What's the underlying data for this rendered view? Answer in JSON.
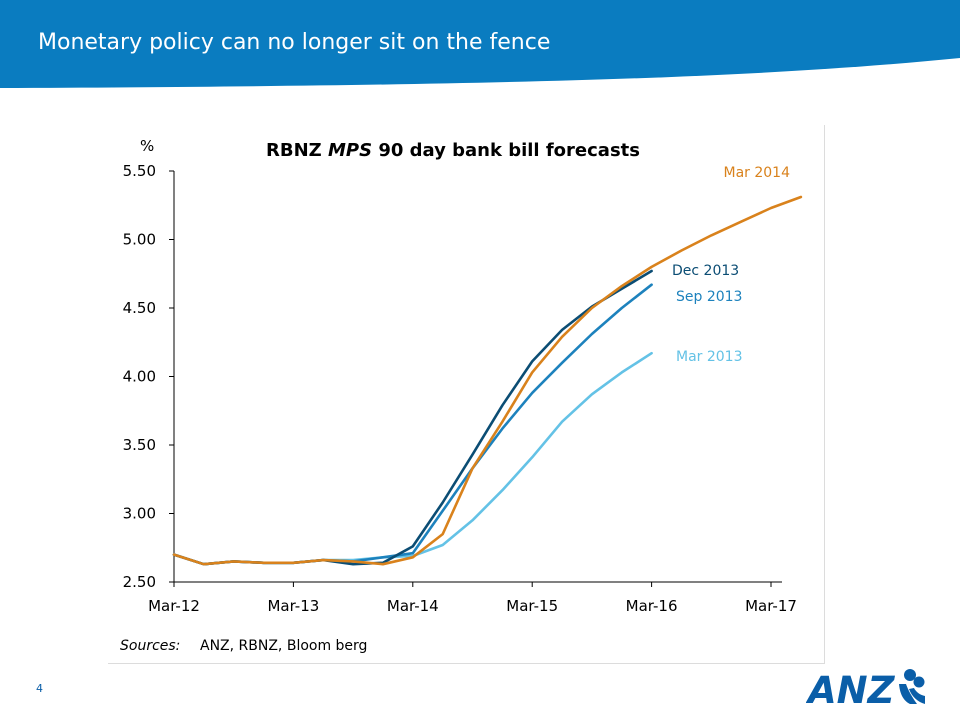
{
  "slide": {
    "title": "Monetary policy can no longer sit on the fence",
    "page_number": "4",
    "sources_label": "Sources:",
    "sources_text": "ANZ, RBNZ, Bloom berg",
    "logo_text": "ANZ"
  },
  "colors": {
    "banner": "#0a7cc0",
    "page_number": "#0a5ea8",
    "mar2014": "#d9821c",
    "dec2013": "#0b4d74",
    "sep2013": "#1d82bd",
    "mar2013": "#64c2e6",
    "logo": "#0a5ea8"
  },
  "chart_data": {
    "type": "line",
    "title_parts": [
      "RBNZ ",
      "MPS",
      " 90 day bank bill forecasts"
    ],
    "y_unit": "%",
    "ylim": [
      2.5,
      5.5
    ],
    "y_ticks": [
      "2.50",
      "3.00",
      "3.50",
      "4.00",
      "4.50",
      "5.00",
      "5.50"
    ],
    "x_ticks": [
      "Mar-12",
      "Mar-13",
      "Mar-14",
      "Mar-15",
      "Mar-16",
      "Mar-17"
    ],
    "x_unit": "quarter",
    "grid": false,
    "series": [
      {
        "name": "Mar 2014",
        "color_key": "mar2014",
        "points": [
          [
            "Mar-12",
            2.7
          ],
          [
            "Jun-12",
            2.63
          ],
          [
            "Sep-12",
            2.65
          ],
          [
            "Dec-12",
            2.64
          ],
          [
            "Mar-13",
            2.64
          ],
          [
            "Jun-13",
            2.66
          ],
          [
            "Sep-13",
            2.65
          ],
          [
            "Dec-13",
            2.63
          ],
          [
            "Mar-14",
            2.68
          ],
          [
            "Jun-14",
            2.85
          ],
          [
            "Sep-14",
            3.33
          ],
          [
            "Dec-14",
            3.67
          ],
          [
            "Mar-15",
            4.03
          ],
          [
            "Jun-15",
            4.29
          ],
          [
            "Sep-15",
            4.5
          ],
          [
            "Dec-15",
            4.66
          ],
          [
            "Mar-16",
            4.8
          ],
          [
            "Jun-16",
            4.92
          ],
          [
            "Sep-16",
            5.03
          ],
          [
            "Dec-16",
            5.13
          ],
          [
            "Mar-17",
            5.23
          ],
          [
            "Jun-17",
            5.31
          ]
        ]
      },
      {
        "name": "Dec 2013",
        "color_key": "dec2013",
        "points": [
          [
            "Mar-12",
            2.7
          ],
          [
            "Jun-12",
            2.63
          ],
          [
            "Sep-12",
            2.65
          ],
          [
            "Dec-12",
            2.64
          ],
          [
            "Mar-13",
            2.64
          ],
          [
            "Jun-13",
            2.66
          ],
          [
            "Sep-13",
            2.63
          ],
          [
            "Dec-13",
            2.64
          ],
          [
            "Mar-14",
            2.76
          ],
          [
            "Jun-14",
            3.08
          ],
          [
            "Sep-14",
            3.43
          ],
          [
            "Dec-14",
            3.79
          ],
          [
            "Mar-15",
            4.11
          ],
          [
            "Jun-15",
            4.34
          ],
          [
            "Sep-15",
            4.51
          ],
          [
            "Dec-15",
            4.64
          ],
          [
            "Mar-16",
            4.77
          ]
        ]
      },
      {
        "name": "Sep 2013",
        "color_key": "sep2013",
        "points": [
          [
            "Mar-12",
            2.7
          ],
          [
            "Jun-12",
            2.63
          ],
          [
            "Sep-12",
            2.65
          ],
          [
            "Dec-12",
            2.64
          ],
          [
            "Mar-13",
            2.64
          ],
          [
            "Jun-13",
            2.66
          ],
          [
            "Sep-13",
            2.65
          ],
          [
            "Dec-13",
            2.68
          ],
          [
            "Mar-14",
            2.71
          ],
          [
            "Jun-14",
            3.02
          ],
          [
            "Sep-14",
            3.33
          ],
          [
            "Dec-14",
            3.62
          ],
          [
            "Mar-15",
            3.88
          ],
          [
            "Jun-15",
            4.1
          ],
          [
            "Sep-15",
            4.31
          ],
          [
            "Dec-15",
            4.5
          ],
          [
            "Mar-16",
            4.67
          ]
        ]
      },
      {
        "name": "Mar 2013",
        "color_key": "mar2013",
        "points": [
          [
            "Mar-12",
            2.7
          ],
          [
            "Jun-12",
            2.63
          ],
          [
            "Sep-12",
            2.65
          ],
          [
            "Dec-12",
            2.64
          ],
          [
            "Mar-13",
            2.64
          ],
          [
            "Jun-13",
            2.66
          ],
          [
            "Sep-13",
            2.66
          ],
          [
            "Dec-13",
            2.68
          ],
          [
            "Mar-14",
            2.69
          ],
          [
            "Jun-14",
            2.77
          ],
          [
            "Sep-14",
            2.95
          ],
          [
            "Dec-14",
            3.17
          ],
          [
            "Mar-15",
            3.41
          ],
          [
            "Jun-15",
            3.67
          ],
          [
            "Sep-15",
            3.87
          ],
          [
            "Dec-15",
            4.03
          ],
          [
            "Mar-16",
            4.17
          ]
        ]
      }
    ],
    "series_labels": [
      {
        "name": "Mar 2014",
        "color_key": "mar2014"
      },
      {
        "name": "Dec 2013",
        "color_key": "dec2013"
      },
      {
        "name": "Sep 2013",
        "color_key": "sep2013"
      },
      {
        "name": "Mar 2013",
        "color_key": "mar2013"
      }
    ]
  }
}
